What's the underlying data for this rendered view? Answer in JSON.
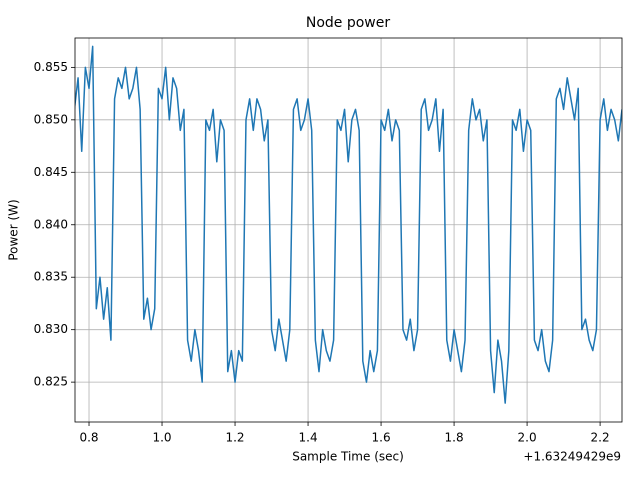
{
  "chart_data": {
    "type": "line",
    "title": "Node power",
    "x_label": "Sample Time (sec)",
    "y_label": "Power (W)",
    "x_offset_label": "+1.63249429e9",
    "x": [
      0.76,
      0.77,
      0.78,
      0.79,
      0.8,
      0.81,
      0.82,
      0.83,
      0.84,
      0.85,
      0.86,
      0.87,
      0.88,
      0.89,
      0.9,
      0.91,
      0.92,
      0.93,
      0.94,
      0.95,
      0.96,
      0.97,
      0.98,
      0.99,
      1.0,
      1.01,
      1.02,
      1.03,
      1.04,
      1.05,
      1.06,
      1.07,
      1.08,
      1.09,
      1.1,
      1.11,
      1.12,
      1.13,
      1.14,
      1.15,
      1.16,
      1.17,
      1.18,
      1.19,
      1.2,
      1.21,
      1.22,
      1.23,
      1.24,
      1.25,
      1.26,
      1.27,
      1.28,
      1.29,
      1.3,
      1.31,
      1.32,
      1.33,
      1.34,
      1.35,
      1.36,
      1.37,
      1.38,
      1.39,
      1.4,
      1.41,
      1.42,
      1.43,
      1.44,
      1.45,
      1.46,
      1.47,
      1.48,
      1.49,
      1.5,
      1.51,
      1.52,
      1.53,
      1.54,
      1.55,
      1.56,
      1.57,
      1.58,
      1.59,
      1.6,
      1.61,
      1.62,
      1.63,
      1.64,
      1.65,
      1.66,
      1.67,
      1.68,
      1.69,
      1.7,
      1.71,
      1.72,
      1.73,
      1.74,
      1.75,
      1.76,
      1.77,
      1.78,
      1.79,
      1.8,
      1.81,
      1.82,
      1.83,
      1.84,
      1.85,
      1.86,
      1.87,
      1.88,
      1.89,
      1.9,
      1.91,
      1.92,
      1.93,
      1.94,
      1.95,
      1.96,
      1.97,
      1.98,
      1.99,
      2.0,
      2.01,
      2.02,
      2.03,
      2.04,
      2.05,
      2.06,
      2.07,
      2.08,
      2.09,
      2.1,
      2.11,
      2.12,
      2.13,
      2.14,
      2.15,
      2.16,
      2.17,
      2.18,
      2.19,
      2.2,
      2.21,
      2.22,
      2.23,
      2.24,
      2.25,
      2.26
    ],
    "series": [
      {
        "name": "Node power",
        "color": "#1f77b4",
        "values": [
          0.851,
          0.854,
          0.847,
          0.855,
          0.853,
          0.857,
          0.832,
          0.835,
          0.831,
          0.834,
          0.829,
          0.852,
          0.854,
          0.853,
          0.855,
          0.852,
          0.853,
          0.855,
          0.851,
          0.831,
          0.833,
          0.83,
          0.832,
          0.853,
          0.852,
          0.855,
          0.85,
          0.854,
          0.853,
          0.849,
          0.851,
          0.829,
          0.827,
          0.83,
          0.828,
          0.825,
          0.85,
          0.849,
          0.851,
          0.846,
          0.85,
          0.849,
          0.826,
          0.828,
          0.825,
          0.828,
          0.827,
          0.85,
          0.852,
          0.849,
          0.852,
          0.851,
          0.848,
          0.85,
          0.83,
          0.828,
          0.831,
          0.829,
          0.827,
          0.83,
          0.851,
          0.852,
          0.849,
          0.85,
          0.852,
          0.849,
          0.829,
          0.826,
          0.83,
          0.828,
          0.827,
          0.829,
          0.85,
          0.849,
          0.851,
          0.846,
          0.85,
          0.851,
          0.849,
          0.827,
          0.825,
          0.828,
          0.826,
          0.828,
          0.85,
          0.849,
          0.851,
          0.848,
          0.85,
          0.849,
          0.83,
          0.829,
          0.831,
          0.828,
          0.83,
          0.851,
          0.852,
          0.849,
          0.85,
          0.852,
          0.847,
          0.851,
          0.829,
          0.827,
          0.83,
          0.828,
          0.826,
          0.829,
          0.849,
          0.852,
          0.85,
          0.851,
          0.848,
          0.85,
          0.828,
          0.824,
          0.829,
          0.827,
          0.823,
          0.828,
          0.85,
          0.849,
          0.851,
          0.847,
          0.85,
          0.849,
          0.829,
          0.828,
          0.83,
          0.827,
          0.826,
          0.829,
          0.852,
          0.853,
          0.851,
          0.854,
          0.852,
          0.85,
          0.853,
          0.83,
          0.831,
          0.829,
          0.828,
          0.83,
          0.85,
          0.852,
          0.849,
          0.851,
          0.85,
          0.848,
          0.851
        ]
      }
    ],
    "xlim": [
      0.7616,
      2.26
    ],
    "ylim": [
      0.8212,
      0.8578
    ],
    "xticks": [
      0.8,
      {
        "value": 1.0,
        "label": "1.0"
      },
      1.2,
      1.4,
      1.6,
      1.8,
      {
        "value": 2.0,
        "label": "2.0"
      },
      2.2
    ],
    "yticks": [
      0.825,
      {
        "value": 0.83,
        "label": "0.830"
      },
      0.835,
      {
        "value": 0.84,
        "label": "0.840"
      },
      0.845,
      {
        "value": 0.85,
        "label": "0.850"
      },
      0.855
    ],
    "grid": true
  }
}
